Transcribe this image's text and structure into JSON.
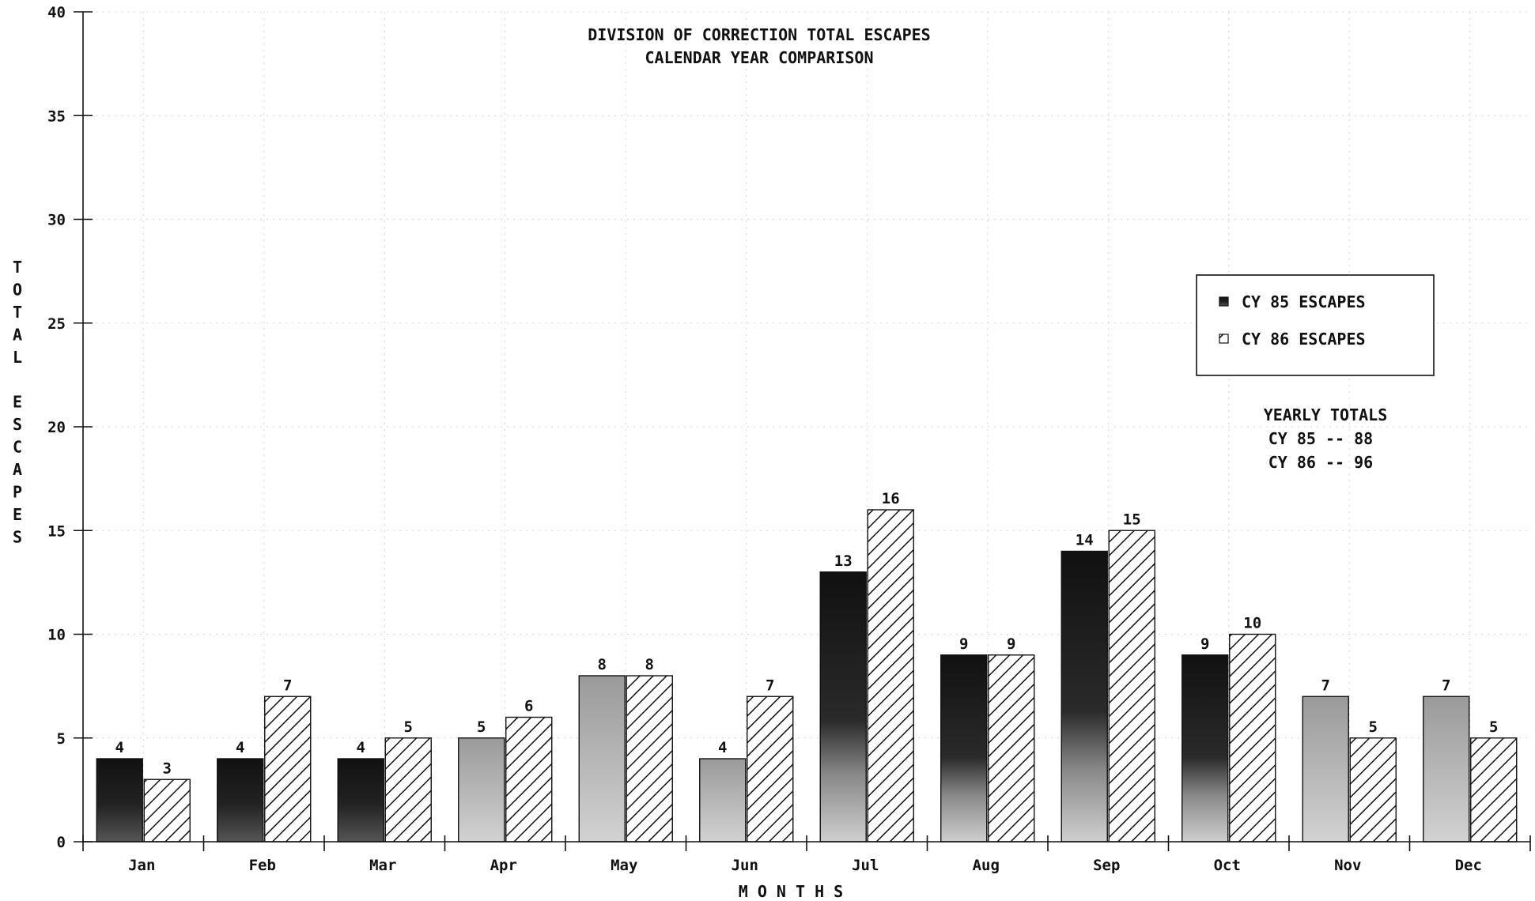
{
  "chart_data": {
    "type": "bar",
    "title": "DIVISION OF CORRECTION TOTAL ESCAPES",
    "subtitle": "CALENDAR YEAR COMPARISON",
    "xlabel": "M O N T H S",
    "ylabel": "TOTAL ESCAPES",
    "categories": [
      "Jan",
      "Feb",
      "Mar",
      "Apr",
      "May",
      "Jun",
      "Jul",
      "Aug",
      "Sep",
      "Oct",
      "Nov",
      "Dec"
    ],
    "series": [
      {
        "name": "CY 85 ESCAPES",
        "values": [
          4,
          4,
          4,
          5,
          8,
          4,
          13,
          9,
          14,
          9,
          7,
          7
        ]
      },
      {
        "name": "CY 86 ESCAPES",
        "values": [
          3,
          7,
          5,
          6,
          8,
          7,
          16,
          9,
          15,
          10,
          5,
          5
        ]
      }
    ],
    "ylim": [
      0,
      40
    ],
    "yticks": [
      "0",
      "5",
      "10",
      "15",
      "20",
      "25",
      "30",
      "35",
      "40"
    ],
    "grid": true,
    "legend_position": "upper-right",
    "annotation": {
      "heading": "YEARLY TOTALS",
      "lines": [
        "CY 85 -- 88",
        "CY 86 -- 96"
      ]
    },
    "colors": {
      "series_85": "#1a1a1a",
      "series_86_hatch": "#111111",
      "background": "#ffffff"
    }
  }
}
